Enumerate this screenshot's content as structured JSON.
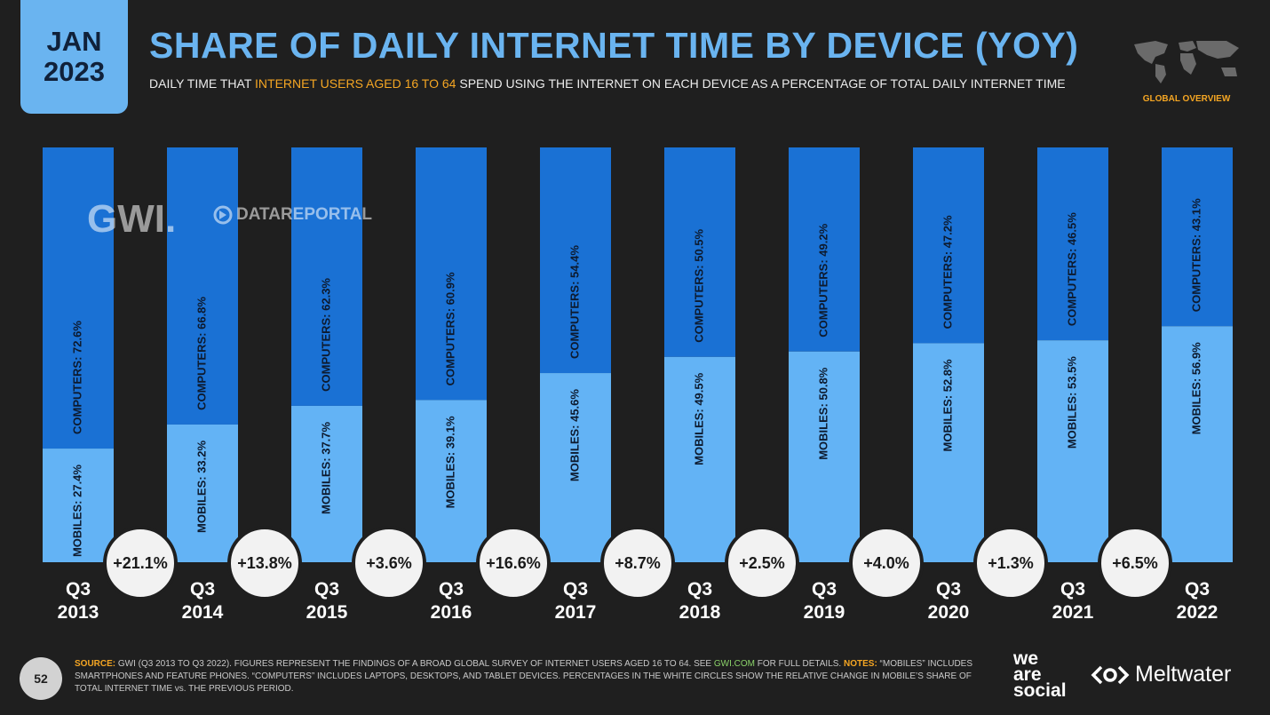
{
  "badge": {
    "month": "JAN",
    "year": "2023"
  },
  "header": {
    "title": "SHARE OF DAILY INTERNET TIME BY DEVICE (YOY)",
    "subtitle_pre": "DAILY TIME THAT ",
    "subtitle_highlight": "INTERNET USERS AGED 16 TO 64",
    "subtitle_post": " SPEND USING THE INTERNET ON EACH DEVICE AS A PERCENTAGE OF TOTAL DAILY INTERNET TIME"
  },
  "region": "GLOBAL OVERVIEW",
  "watermarks": {
    "gwi": "GWI.",
    "datareportal": "DATAREPORTAL"
  },
  "chart_data": {
    "type": "bar",
    "stacked": true,
    "categories": [
      [
        "Q3",
        "2013"
      ],
      [
        "Q3",
        "2014"
      ],
      [
        "Q3",
        "2015"
      ],
      [
        "Q3",
        "2016"
      ],
      [
        "Q3",
        "2017"
      ],
      [
        "Q3",
        "2018"
      ],
      [
        "Q3",
        "2019"
      ],
      [
        "Q3",
        "2020"
      ],
      [
        "Q3",
        "2021"
      ],
      [
        "Q3",
        "2022"
      ]
    ],
    "series": [
      {
        "name": "MOBILES",
        "values": [
          27.4,
          33.2,
          37.7,
          39.1,
          45.6,
          49.5,
          50.8,
          52.8,
          53.5,
          56.9
        ],
        "color": "#63b3f5"
      },
      {
        "name": "COMPUTERS",
        "values": [
          72.6,
          66.8,
          62.3,
          60.9,
          54.4,
          50.5,
          49.2,
          47.2,
          46.5,
          43.1
        ],
        "color": "#1a71d4"
      }
    ],
    "ylim": [
      0,
      100
    ],
    "changes": [
      "+21.1%",
      "+13.8%",
      "+3.6%",
      "+16.6%",
      "+8.7%",
      "+2.5%",
      "+4.0%",
      "+1.3%",
      "+6.5%"
    ],
    "grid": false
  },
  "footer": {
    "page": "52",
    "source_label": "SOURCE:",
    "source_text": " GWI (Q3 2013 TO Q3 2022). FIGURES REPRESENT THE FINDINGS OF A BROAD GLOBAL SURVEY OF INTERNET USERS AGED 16 TO 64. SEE ",
    "source_link": "GWI.COM",
    "source_tail": " FOR FULL DETAILS. ",
    "notes_label": "NOTES:",
    "notes_text": " “MOBILES” INCLUDES SMARTPHONES AND FEATURE PHONES. “COMPUTERS” INCLUDES LAPTOPS, DESKTOPS, AND TABLET DEVICES. PERCENTAGES IN THE WHITE CIRCLES SHOW THE RELATIVE CHANGE IN MOBILE’S SHARE OF TOTAL INTERNET TIME vs. THE PREVIOUS PERIOD.",
    "brand_1": [
      "we",
      "are",
      "social"
    ],
    "brand_2": "Meltwater"
  }
}
